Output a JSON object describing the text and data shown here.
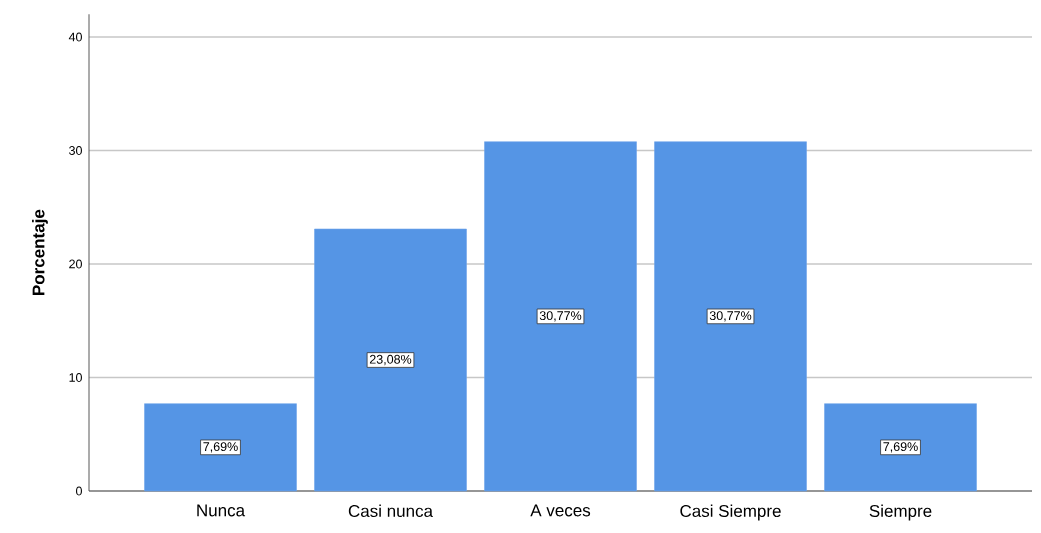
{
  "chart_data": {
    "type": "bar",
    "ylabel": "Porcentaje",
    "categories": [
      "Nunca",
      "Casi nunca",
      "A veces",
      "Casi Siempre",
      "Siempre"
    ],
    "values": [
      7.69,
      23.08,
      30.77,
      30.77,
      7.69
    ],
    "value_labels": [
      "7,69%",
      "23,08%",
      "30,77%",
      "30,77%",
      "7,69%"
    ],
    "color": "#5595e5",
    "ylim": [
      0,
      42
    ],
    "yticks": [
      0,
      10,
      20,
      30,
      40
    ],
    "grid": "y"
  }
}
